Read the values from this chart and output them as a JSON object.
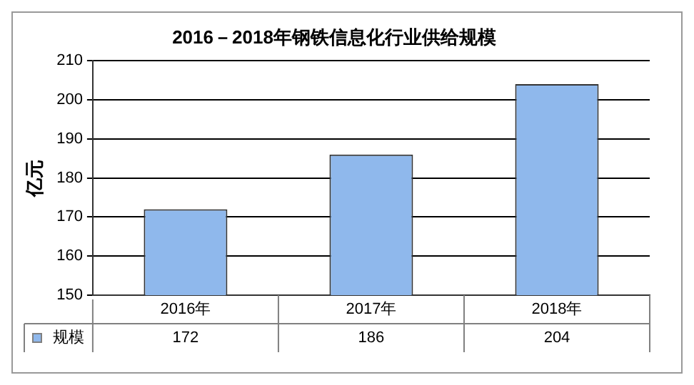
{
  "chart_data": {
    "type": "bar",
    "title": "2016－2018年钢铁信息化行业供给规模",
    "ylabel": "亿元",
    "categories": [
      "2016年",
      "2017年",
      "2018年"
    ],
    "series": [
      {
        "name": "规模",
        "color": "#8fb8ec",
        "values": [
          172,
          186,
          204
        ]
      }
    ],
    "ylim": [
      150,
      210
    ],
    "yticks": [
      150,
      160,
      170,
      180,
      190,
      200,
      210
    ],
    "grid": "y",
    "legend": "bottom left",
    "data_labels": true
  }
}
